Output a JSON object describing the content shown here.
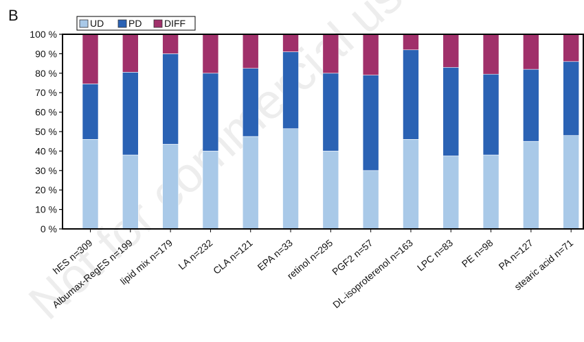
{
  "panel_label": "B",
  "watermark": "Not for commercial use only",
  "colors": {
    "UD": "#a9c9e8",
    "PD": "#2a62b4",
    "DIFF": "#a0306a",
    "frame": "#000000"
  },
  "chart_data": {
    "type": "bar",
    "stacked": true,
    "categories": [
      "hES n=309",
      "Albumax-RegES n=199",
      "lipid mix n=179",
      "LA n=232",
      "CLA n=121",
      "EPA n=33",
      "retinol n=295",
      "PGF2 n=57",
      "DL-isoproterenol n=163",
      "LPC n=83",
      "PE n=98",
      "PA n=127",
      "stearic acid n=71"
    ],
    "series": [
      {
        "name": "UD",
        "values": [
          46,
          38,
          43.5,
          40,
          47.5,
          51.5,
          40,
          30,
          46,
          37.5,
          38,
          45,
          48
        ]
      },
      {
        "name": "PD",
        "values": [
          28.5,
          42.5,
          46.5,
          40,
          35,
          39.5,
          40,
          49,
          46,
          45.5,
          41.5,
          37,
          38
        ]
      },
      {
        "name": "DIFF",
        "values": [
          25.5,
          19.5,
          10,
          20,
          17.5,
          9,
          20,
          21,
          8,
          17,
          20.5,
          18,
          14
        ]
      }
    ],
    "y_ticks": [
      "0 %",
      "10 %",
      "20 %",
      "30 %",
      "40 %",
      "50 %",
      "60 %",
      "70 %",
      "80 %",
      "90 %",
      "100 %"
    ],
    "ylim": [
      0,
      100
    ],
    "legend": {
      "position": "top-left",
      "entries": [
        "UD",
        "PD",
        "DIFF"
      ]
    },
    "grid": false
  }
}
